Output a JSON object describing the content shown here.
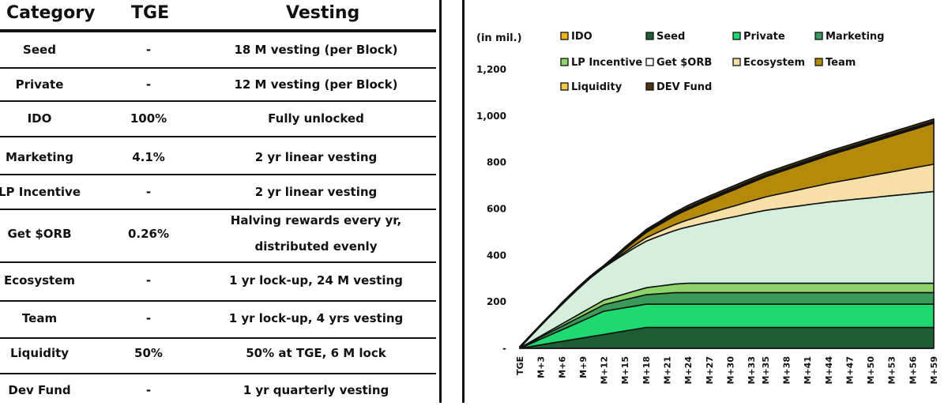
{
  "table": {
    "headers": {
      "category": "Category",
      "tge": "TGE",
      "vesting": "Vesting"
    },
    "rows": [
      {
        "category": "Seed",
        "tge": "-",
        "vesting": [
          "18 M vesting (per Block)"
        ]
      },
      {
        "category": "Private",
        "tge": "-",
        "vesting": [
          "12 M vesting (per Block)"
        ]
      },
      {
        "category": "IDO",
        "tge": "100%",
        "vesting": [
          "Fully unlocked"
        ]
      },
      {
        "category": "Marketing",
        "tge": "4.1%",
        "vesting": [
          "2 yr linear vesting"
        ]
      },
      {
        "category": "LP Incentive",
        "tge": "-",
        "vesting": [
          "2 yr linear vesting"
        ]
      },
      {
        "category": "Get $ORB",
        "tge": "0.26%",
        "vesting": [
          "Halving rewards every yr,",
          "distributed evenly"
        ]
      },
      {
        "category": "Ecosystem",
        "tge": "-",
        "vesting": [
          "1 yr lock-up, 24 M vesting"
        ]
      },
      {
        "category": "Team",
        "tge": "-",
        "vesting": [
          "1 yr lock-up, 4 yrs vesting"
        ]
      },
      {
        "category": "Liquidity",
        "tge": "50%",
        "vesting": [
          "50% at TGE, 6 M lock"
        ]
      },
      {
        "category": "Dev Fund",
        "tge": "-",
        "vesting": [
          "1 yr quarterly vesting"
        ]
      }
    ]
  },
  "chart_data": {
    "type": "area",
    "stacked": true,
    "unit_label": "(in mil.)",
    "ylim": [
      0,
      1200
    ],
    "yticks": [
      0,
      200,
      400,
      600,
      800,
      1000,
      1200
    ],
    "ytick_labels": [
      "-",
      "200",
      "400",
      "600",
      "800",
      "1,000",
      "1,200"
    ],
    "x": [
      "TGE",
      "M+1",
      "M+2",
      "M+3",
      "M+4",
      "M+5",
      "M+6",
      "M+7",
      "M+8",
      "M+9",
      "M+10",
      "M+11",
      "M+12",
      "M+13",
      "M+14",
      "M+15",
      "M+16",
      "M+17",
      "M+18",
      "M+19",
      "M+20",
      "M+21",
      "M+22",
      "M+23",
      "M+24",
      "M+25",
      "M+26",
      "M+27",
      "M+28",
      "M+29",
      "M+30",
      "M+31",
      "M+32",
      "M+33",
      "M+34",
      "M+35",
      "M+36",
      "M+37",
      "M+38",
      "M+39",
      "M+40",
      "M+41",
      "M+42",
      "M+43",
      "M+44",
      "M+45",
      "M+46",
      "M+47",
      "M+48",
      "M+49",
      "M+50",
      "M+51",
      "M+52",
      "M+53",
      "M+54",
      "M+55",
      "M+56",
      "M+57",
      "M+58",
      "M+59"
    ],
    "xtick_labels": [
      "TGE",
      "M+3",
      "M+6",
      "M+9",
      "M+12",
      "M+15",
      "M+18",
      "M+21",
      "M+24",
      "M+27",
      "M+30",
      "M+33",
      "M+35",
      "M+38",
      "M+41",
      "M+44",
      "M+47",
      "M+50",
      "M+53",
      "M+56",
      "M+59"
    ],
    "legend_position": "top",
    "series": [
      {
        "name": "Seed",
        "color": "#1e5e32",
        "values": [
          0,
          5,
          10,
          15,
          20,
          25,
          30,
          35,
          40,
          45,
          50,
          55,
          60,
          65,
          70,
          75,
          80,
          85,
          90,
          90,
          90,
          90,
          90,
          90,
          90,
          90,
          90,
          90,
          90,
          90,
          90,
          90,
          90,
          90,
          90,
          90,
          90,
          90,
          90,
          90,
          90,
          90,
          90,
          90,
          90,
          90,
          90,
          90,
          90,
          90,
          90,
          90,
          90,
          90,
          90,
          90,
          90,
          90,
          90,
          90
        ]
      },
      {
        "name": "Private",
        "color": "#1ed870",
        "values": [
          0,
          8.3,
          16.7,
          25,
          33.3,
          41.7,
          50,
          58.3,
          66.7,
          75,
          83.3,
          91.7,
          100,
          100,
          100,
          100,
          100,
          100,
          100,
          100,
          100,
          100,
          100,
          100,
          100,
          100,
          100,
          100,
          100,
          100,
          100,
          100,
          100,
          100,
          100,
          100,
          100,
          100,
          100,
          100,
          100,
          100,
          100,
          100,
          100,
          100,
          100,
          100,
          100,
          100,
          100,
          100,
          100,
          100,
          100,
          100,
          100,
          100,
          100,
          100
        ]
      },
      {
        "name": "Marketing",
        "color": "#3a9a5a",
        "values": [
          2,
          4.2,
          6.3,
          8.5,
          10.7,
          12.8,
          15,
          17.1,
          19.3,
          21.5,
          23.6,
          25.8,
          27.9,
          30.1,
          32.3,
          34.4,
          36.6,
          38.7,
          40.9,
          43.1,
          45.2,
          47.4,
          49.6,
          50,
          50,
          50,
          50,
          50,
          50,
          50,
          50,
          50,
          50,
          50,
          50,
          50,
          50,
          50,
          50,
          50,
          50,
          50,
          50,
          50,
          50,
          50,
          50,
          50,
          50,
          50,
          50,
          50,
          50,
          50,
          50,
          50,
          50,
          50,
          50,
          50
        ]
      },
      {
        "name": "LP Incentive",
        "color": "#8fd46a",
        "values": [
          0,
          1.7,
          3.3,
          5,
          6.7,
          8.3,
          10,
          11.7,
          13.3,
          15,
          16.7,
          18.3,
          20,
          21.7,
          23.3,
          25,
          26.7,
          28.3,
          30,
          31.7,
          33.3,
          35,
          36.7,
          38.3,
          40,
          40,
          40,
          40,
          40,
          40,
          40,
          40,
          40,
          40,
          40,
          40,
          40,
          40,
          40,
          40,
          40,
          40,
          40,
          40,
          40,
          40,
          40,
          40,
          40,
          40,
          40,
          40,
          40,
          40,
          40,
          40,
          40,
          40,
          40,
          40
        ]
      },
      {
        "name": "Get $ORB",
        "color": "#d4efdc",
        "values": [
          0,
          15,
          30,
          44,
          58,
          71,
          84,
          96,
          108,
          118,
          128,
          135,
          141,
          152,
          163,
          173,
          183,
          192,
          200,
          208,
          216,
          223,
          230,
          237,
          243,
          250,
          257,
          264,
          270,
          277,
          283,
          289,
          296,
          302,
          308,
          314,
          318,
          322,
          326,
          330,
          334,
          338,
          342,
          346,
          350,
          353,
          356,
          359,
          362,
          365,
          368,
          371,
          374,
          377,
          380,
          383,
          386,
          389,
          392,
          395
        ]
      },
      {
        "name": "Ecosystem",
        "color": "#f6e0a8",
        "values": [
          0,
          0,
          0,
          0,
          0,
          0,
          0,
          0,
          0,
          0,
          0,
          0,
          0,
          2.5,
          5,
          7.5,
          10,
          12.5,
          15,
          17.5,
          20,
          22.5,
          25,
          27.5,
          30,
          32.5,
          35,
          37.5,
          40,
          42.5,
          45,
          47.5,
          50,
          52.5,
          55,
          57.5,
          60,
          62.5,
          65,
          67.5,
          70,
          72.5,
          75,
          77.5,
          80,
          82.5,
          85,
          87.5,
          90,
          92.5,
          95,
          97.5,
          100,
          102.5,
          105,
          107.5,
          110,
          112.5,
          115,
          117.5
        ]
      },
      {
        "name": "Team",
        "color": "#b58a0a",
        "values": [
          0,
          0,
          0,
          0,
          0,
          0,
          0,
          0,
          0,
          0,
          0,
          0,
          0,
          3.75,
          7.5,
          11.25,
          15,
          18.75,
          22.5,
          26.25,
          30,
          33.75,
          37.5,
          41.25,
          45,
          48.75,
          52.5,
          56.25,
          60,
          63.75,
          67.5,
          71.25,
          75,
          78.75,
          82.5,
          86.25,
          90,
          93.75,
          97.5,
          101.25,
          105,
          108.75,
          112.5,
          116.25,
          120,
          123.75,
          127.5,
          131.25,
          135,
          138.75,
          142.5,
          146.25,
          150,
          153.75,
          157.5,
          161.25,
          165,
          168.75,
          172.5,
          176.25
        ]
      },
      {
        "name": "IDO",
        "color": "#f2b319",
        "values": [
          3,
          3,
          3,
          3,
          3,
          3,
          3,
          3,
          3,
          3,
          3,
          3,
          3,
          3,
          3,
          3,
          3,
          3,
          3,
          3,
          3,
          3,
          3,
          3,
          3,
          3,
          3,
          3,
          3,
          3,
          3,
          3,
          3,
          3,
          3,
          3,
          3,
          3,
          3,
          3,
          3,
          3,
          3,
          3,
          3,
          3,
          3,
          3,
          3,
          3,
          3,
          3,
          3,
          3,
          3,
          3,
          3,
          3,
          3,
          3
        ]
      },
      {
        "name": "Liquidity",
        "color": "#f4c84e",
        "values": [
          2.5,
          2.5,
          2.5,
          2.5,
          2.5,
          2.5,
          5,
          5,
          5,
          5,
          5,
          5,
          5,
          5,
          5,
          5,
          5,
          5,
          5,
          5,
          5,
          5,
          5,
          5,
          5,
          5,
          5,
          5,
          5,
          5,
          5,
          5,
          5,
          5,
          5,
          5,
          5,
          5,
          5,
          5,
          5,
          5,
          5,
          5,
          5,
          5,
          5,
          5,
          5,
          5,
          5,
          5,
          5,
          5,
          5,
          5,
          5,
          5,
          5,
          5
        ]
      },
      {
        "name": "DEV Fund",
        "color": "#4a3610",
        "values": [
          0,
          0,
          0,
          0,
          0,
          0,
          0,
          0,
          0,
          0,
          0,
          0,
          0,
          0,
          0,
          2.5,
          2.5,
          2.5,
          5,
          5,
          5,
          7.5,
          7.5,
          7.5,
          10,
          10,
          10,
          10,
          10,
          10,
          10,
          10,
          10,
          10,
          10,
          10,
          10,
          10,
          10,
          10,
          10,
          10,
          10,
          10,
          10,
          10,
          10,
          10,
          10,
          10,
          10,
          10,
          10,
          10,
          10,
          10,
          10,
          10,
          10,
          10
        ]
      }
    ],
    "legend": [
      {
        "name": "IDO",
        "color": "#f2b319"
      },
      {
        "name": "Seed",
        "color": "#1e5e32"
      },
      {
        "name": "Private",
        "color": "#1ed870"
      },
      {
        "name": "Marketing",
        "color": "#3a9a5a"
      },
      {
        "name": "LP Incentive",
        "color": "#8fd46a"
      },
      {
        "name": "Get $ORB",
        "color": "#ffffff"
      },
      {
        "name": "Ecosystem",
        "color": "#f6e0a8"
      },
      {
        "name": "Team",
        "color": "#b58a0a"
      },
      {
        "name": "Liquidity",
        "color": "#f4c84e"
      },
      {
        "name": "DEV Fund",
        "color": "#4a3610"
      }
    ]
  }
}
